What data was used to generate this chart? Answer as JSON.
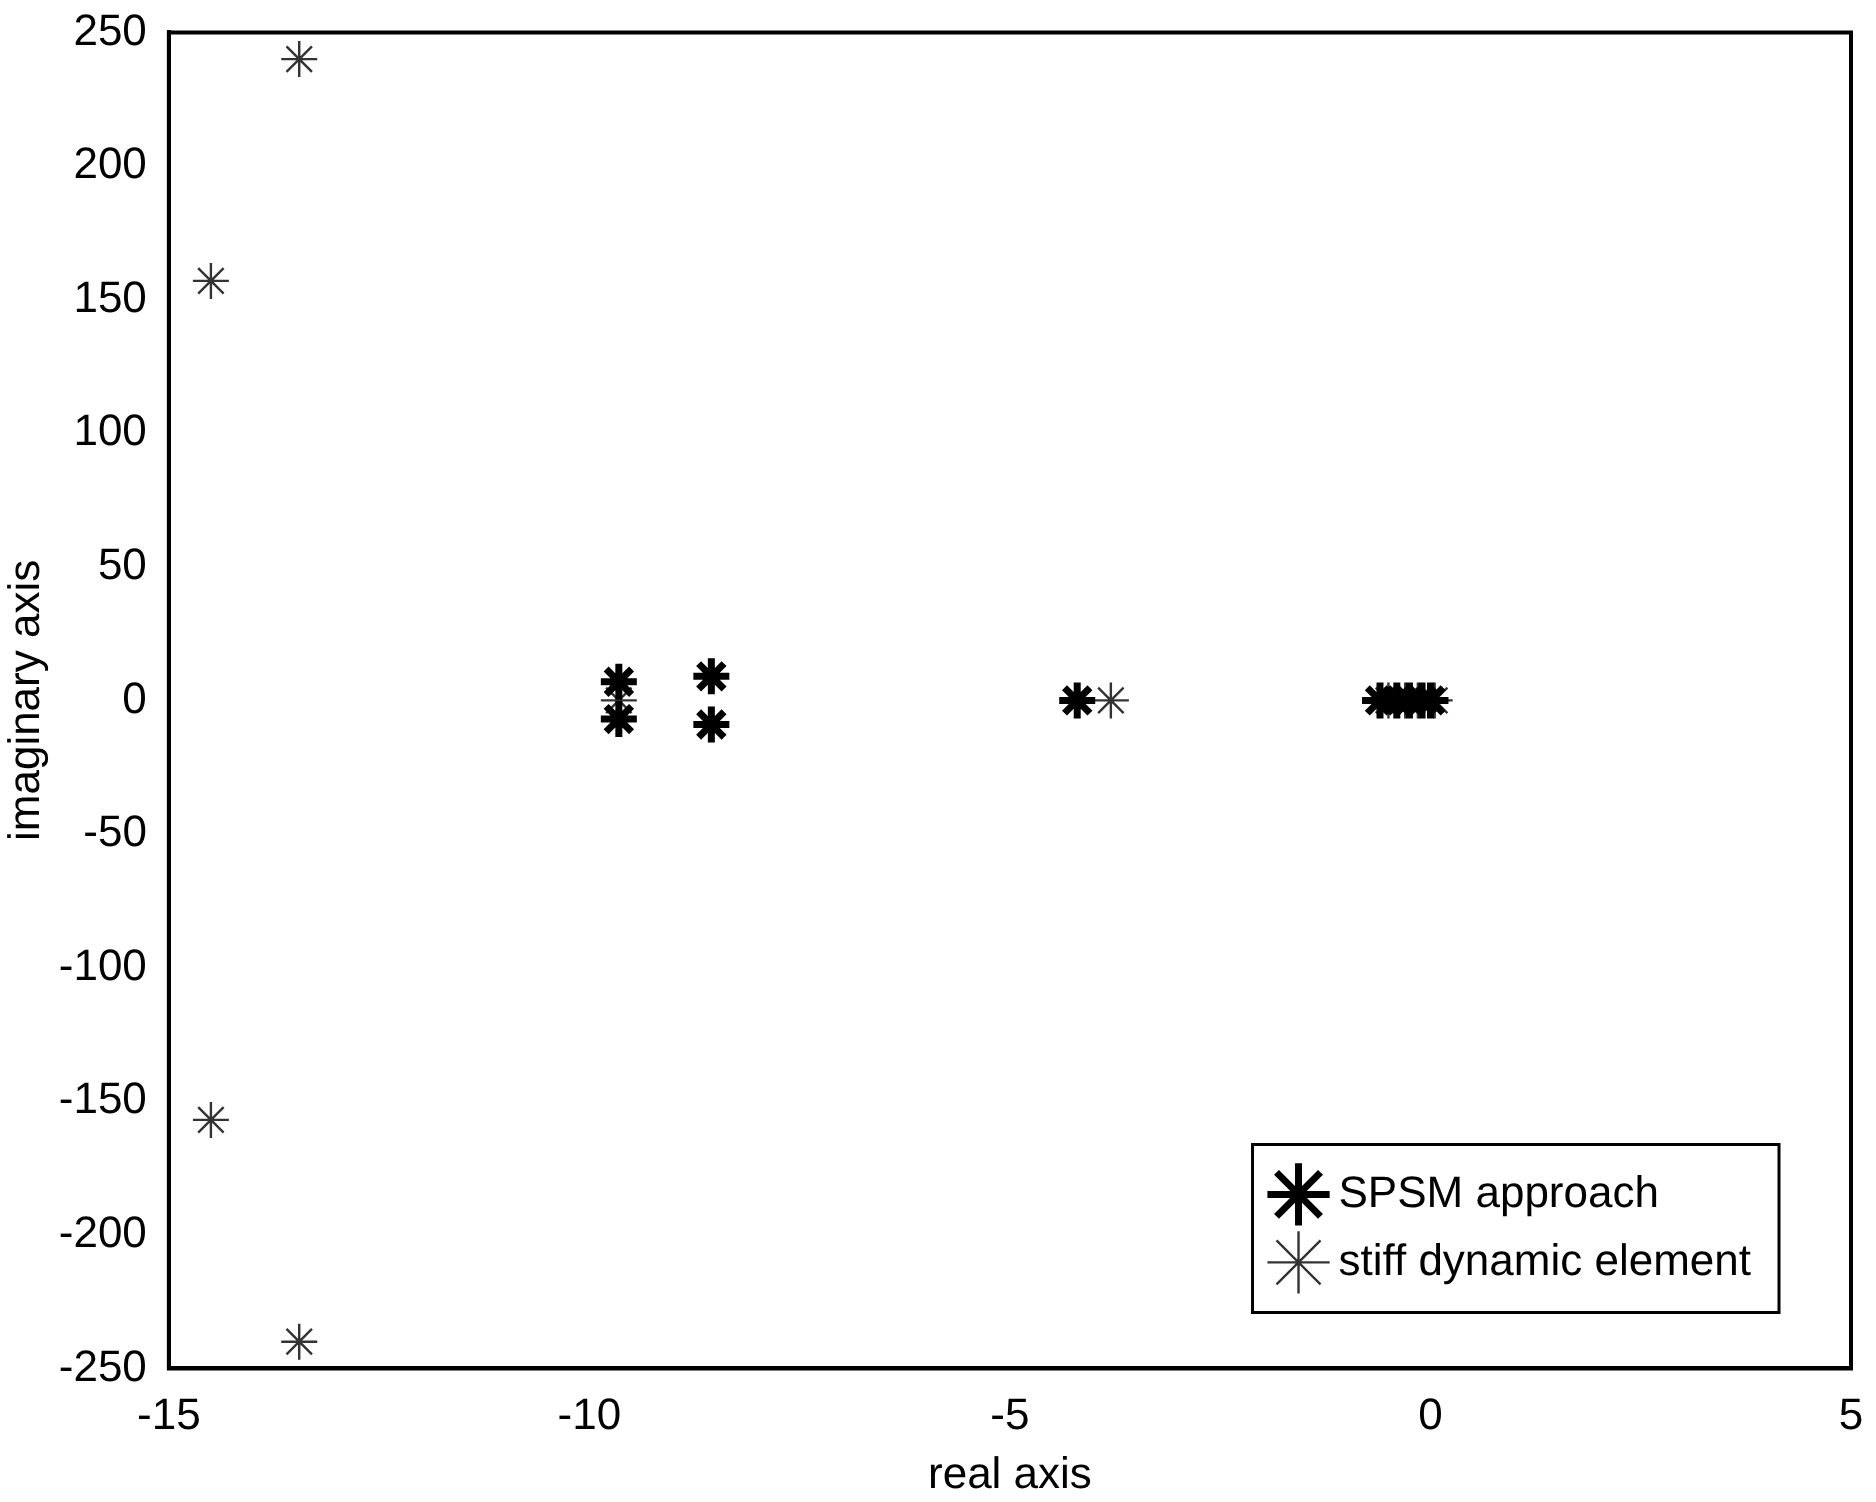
{
  "chart_data": {
    "type": "scatter",
    "xlabel": "real axis",
    "ylabel": "imaginary axis",
    "xlim": [
      -15,
      5
    ],
    "ylim": [
      -250,
      250
    ],
    "xticks": [
      -15,
      -10,
      -5,
      0,
      5
    ],
    "yticks": [
      -250,
      -200,
      -150,
      -100,
      -50,
      0,
      50,
      100,
      150,
      200,
      250
    ],
    "grid": false,
    "legend": "bottom right",
    "marker": "cross",
    "series": [
      {
        "name": "SPSM approach",
        "color": "#000000",
        "x": [
          -9.65,
          -9.65,
          -8.55,
          -8.55,
          -4.2,
          -0.6,
          -0.4,
          -0.25,
          -0.1,
          0
        ],
        "values": [
          7,
          -7,
          9,
          -9,
          0,
          0,
          0,
          0,
          0,
          0
        ]
      },
      {
        "name": "stiff dynamic element",
        "color": "#333333",
        "x": [
          -14.5,
          -14.5,
          -13.45,
          -13.45,
          -9.65,
          -3.8,
          -0.5,
          -0.3,
          -0.15,
          0.05
        ],
        "values": [
          157,
          -157,
          240,
          -240,
          0,
          0,
          0,
          0,
          0,
          0
        ]
      }
    ]
  }
}
